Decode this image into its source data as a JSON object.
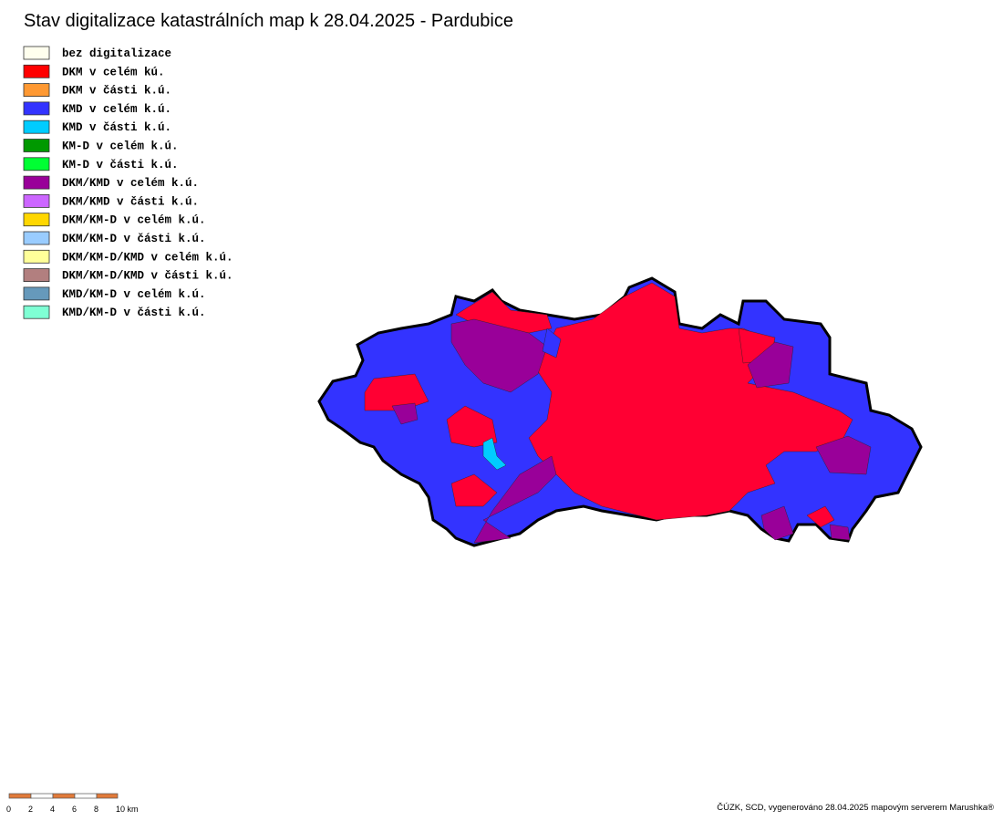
{
  "title": "Stav digitalizace katastrálních map k 28.04.2025 - Pardubice",
  "legend": [
    {
      "label": "bez digitalizace",
      "color": "#ffffee"
    },
    {
      "label": "DKM v celém kú.",
      "color": "#ff0000"
    },
    {
      "label": "DKM v části k.ú.",
      "color": "#ff9933"
    },
    {
      "label": "KMD v celém k.ú.",
      "color": "#3333ff"
    },
    {
      "label": "KMD v části k.ú.",
      "color": "#00ccff"
    },
    {
      "label": "KM-D v celém k.ú.",
      "color": "#009900"
    },
    {
      "label": "KM-D v části k.ú.",
      "color": "#00ff33"
    },
    {
      "label": "DKM/KMD v celém k.ú.",
      "color": "#990099"
    },
    {
      "label": "DKM/KMD v části k.ú.",
      "color": "#cc66ff"
    },
    {
      "label": "DKM/KM-D v celém k.ú.",
      "color": "#ffd700"
    },
    {
      "label": "DKM/KM-D v části k.ú.",
      "color": "#99ccff"
    },
    {
      "label": "DKM/KM-D/KMD v celém k.ú.",
      "color": "#ffff99"
    },
    {
      "label": "DKM/KM-D/KMD v části k.ú.",
      "color": "#b27f7f"
    },
    {
      "label": "KMD/KM-D v celém k.ú.",
      "color": "#6699bb"
    },
    {
      "label": "KMD/KM-D v části k.ú.",
      "color": "#7fffd4"
    }
  ],
  "scale_bar": {
    "labels": [
      "0",
      "2",
      "4",
      "6",
      "8",
      "10 km"
    ]
  },
  "footer": "ČÚZK, SCD, vygenerováno 28.04.2025 mapovým serverem Marushka®"
}
